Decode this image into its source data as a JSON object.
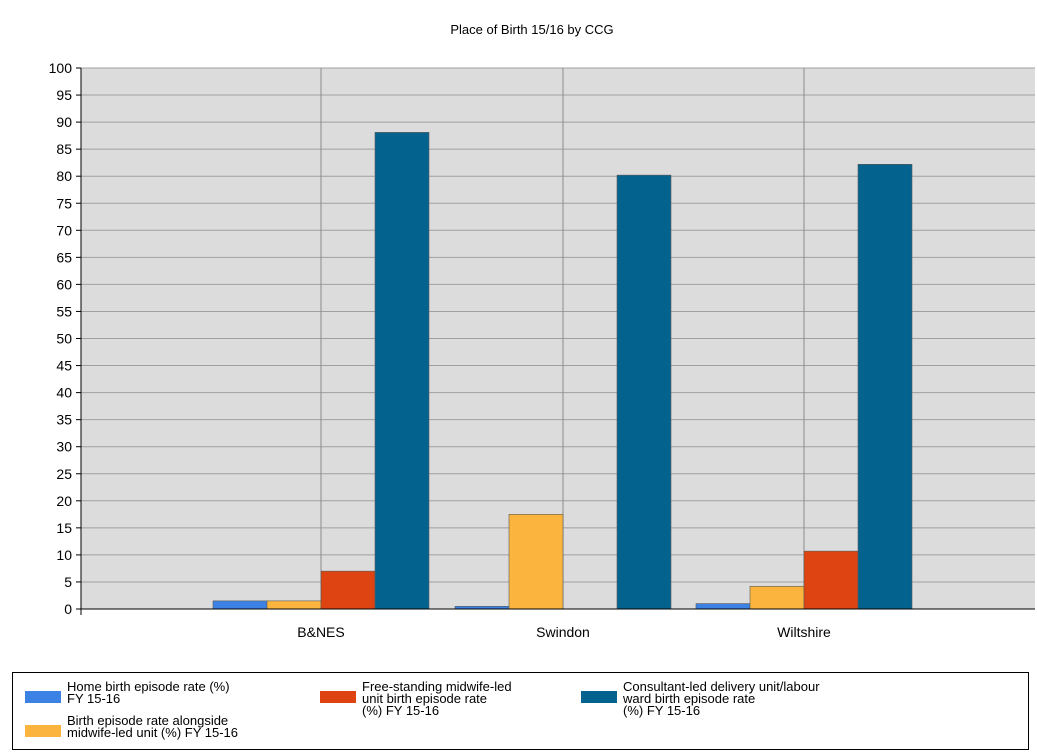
{
  "chart_data": {
    "type": "bar",
    "title": "Place of Birth 15/16 by CCG",
    "categories": [
      "B&NES",
      "Swindon",
      "Wiltshire"
    ],
    "ylim": [
      0,
      100
    ],
    "yticks": [
      0,
      5,
      10,
      15,
      20,
      25,
      30,
      35,
      40,
      45,
      50,
      55,
      60,
      65,
      70,
      75,
      80,
      85,
      90,
      95,
      100
    ],
    "grid": true,
    "legend_position": "bottom",
    "series": [
      {
        "name": "Home birth episode rate (%) FY 15-16",
        "color": "#3b82e4",
        "values": [
          1.5,
          0.5,
          1.0
        ]
      },
      {
        "name": "Birth episode rate alongside midwife-led unit (%) FY 15-16",
        "color": "#fbb53e",
        "values": [
          1.5,
          17.5,
          4.2
        ]
      },
      {
        "name": "Free-standing midwife-led unit birth episode rate (%) FY 15-16",
        "color": "#dd4411",
        "values": [
          7.0,
          0,
          10.7
        ]
      },
      {
        "name": "Consultant-led delivery unit/labour ward birth episode rate (%) FY 15-16",
        "color": "#04628f",
        "values": [
          88.1,
          80.2,
          82.2
        ]
      }
    ]
  },
  "legend": {
    "items": [
      {
        "line1": "Home birth episode rate (%)",
        "line2": "FY 15-16",
        "line3": ""
      },
      {
        "line1": "Birth episode rate alongside",
        "line2": "midwife-led unit (%) FY 15-16",
        "line3": ""
      },
      {
        "line1": "Free-standing midwife-led",
        "line2": "unit birth episode rate",
        "line3": "(%) FY 15-16"
      },
      {
        "line1": "Consultant-led delivery unit/labour",
        "line2": "ward birth episode rate",
        "line3": "(%) FY 15-16"
      }
    ]
  }
}
